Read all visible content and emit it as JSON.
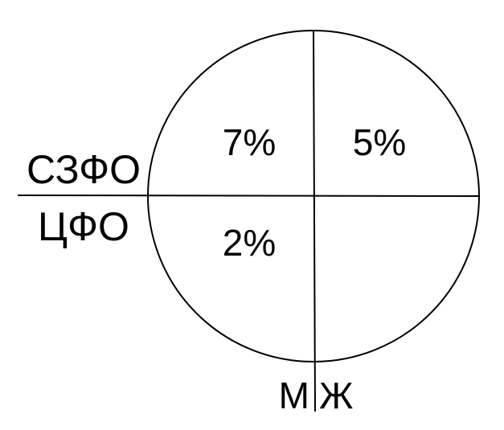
{
  "diagram": {
    "quadrants": {
      "top_left": "7%",
      "top_right": "5%",
      "bottom_left": "2%",
      "bottom_right": ""
    },
    "left_labels": {
      "upper": "СЗФО",
      "lower": "ЦФО"
    },
    "bottom_labels": {
      "left": "М",
      "right": "Ж"
    },
    "colors": {
      "stroke": "#000000",
      "background": "#ffffff"
    }
  }
}
